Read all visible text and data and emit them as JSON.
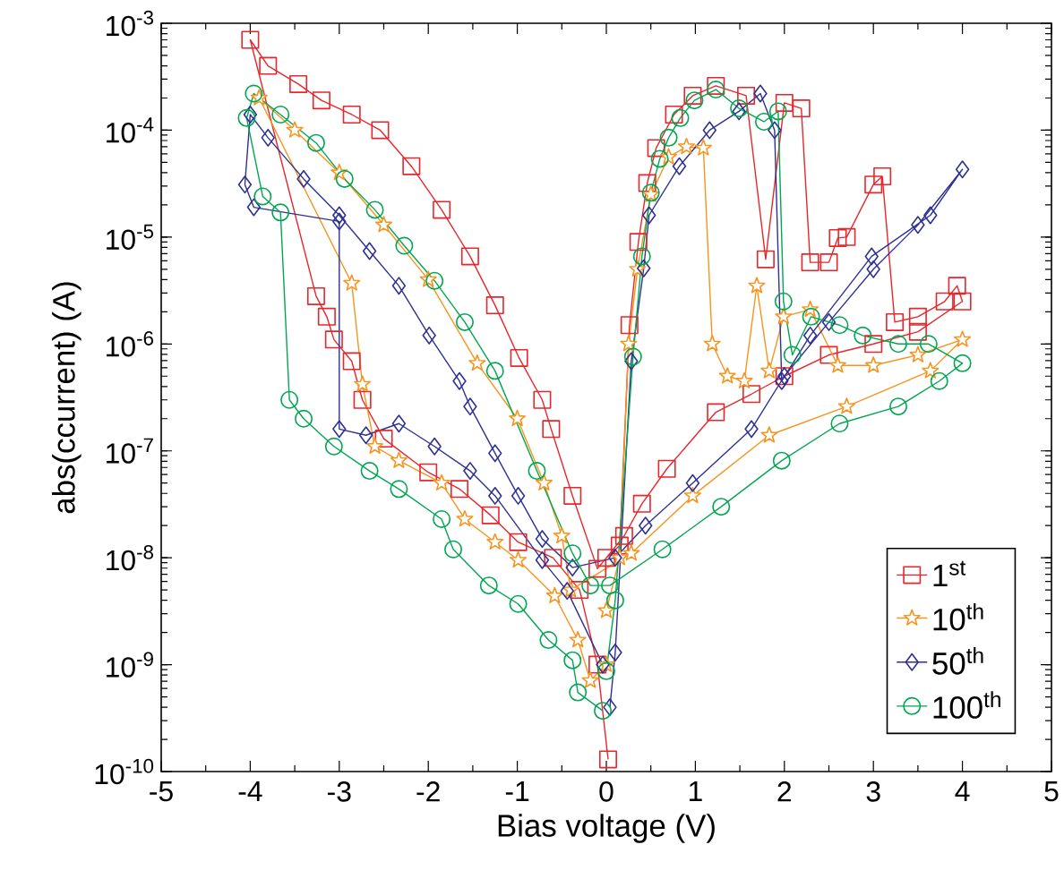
{
  "chart_data": {
    "type": "line",
    "xlabel": "Bias voltage (V)",
    "ylabel": "abs(ccurrent) (A)",
    "log": "y",
    "legend": "bottom right",
    "line_style": "solid",
    "xlim": [
      -5,
      5
    ],
    "xticks": [
      -5,
      -4,
      -3,
      -2,
      -1,
      0,
      1,
      2,
      3,
      4,
      5
    ],
    "ylim": [
      1e-10,
      0.001
    ],
    "yticks": [
      {
        "value": 1e-10,
        "label": "10$^{-10}$"
      },
      {
        "value": 1e-09,
        "label": "10$^{-9}$"
      },
      {
        "value": 1e-08,
        "label": "10$^{-8}$"
      },
      {
        "value": 1e-07,
        "label": "10$^{-7}$"
      },
      {
        "value": 1e-06,
        "label": "10$^{-6}$"
      },
      {
        "value": 1e-05,
        "label": "10$^{-5}$"
      },
      {
        "value": 0.0001,
        "label": "10$^{-4}$"
      },
      {
        "value": 0.001,
        "label": "10$^{-3}$"
      }
    ],
    "series": [
      {
        "name": "1$^{st}$",
        "color": "#e8262b",
        "marker": "square",
        "x": [
          0.0,
          0.15,
          0.26,
          0.36,
          0.46,
          0.56,
          0.76,
          0.97,
          1.23,
          1.57,
          1.79,
          2.0,
          2.19,
          2.29,
          2.5,
          2.6,
          2.7,
          3.0,
          3.1,
          3.24,
          3.5,
          3.8,
          3.94,
          4.0,
          3.5,
          3.0,
          2.5,
          2.0,
          1.63,
          1.23,
          0.68,
          0.4,
          0.2,
          -0.1,
          -0.38,
          -0.62,
          -0.72,
          -0.98,
          -1.25,
          -1.53,
          -1.85,
          -2.19,
          -2.54,
          -2.86,
          -3.2,
          -3.46,
          -3.8,
          -4.0,
          -3.26,
          -3.14,
          -3.06,
          -2.86,
          -2.74,
          -2.5,
          -2.0,
          -1.65,
          -1.3,
          -0.99,
          -0.6,
          -0.3,
          -0.1,
          0.02
        ],
        "values": [
          1e-08,
          1.3e-08,
          1.5e-06,
          9e-06,
          3.2e-05,
          6.8e-05,
          0.00014,
          0.00021,
          0.00026,
          0.00021,
          6.2e-06,
          0.00018,
          0.00016,
          5.8e-06,
          5.8e-06,
          9.8e-06,
          1e-05,
          3.1e-05,
          3.7e-05,
          1.6e-06,
          1.8e-06,
          2.5e-06,
          3.5e-06,
          2.5e-06,
          1.3e-06,
          1e-06,
          7.9e-07,
          5e-07,
          3.4e-07,
          2.3e-07,
          6.8e-08,
          3.2e-08,
          1.6e-08,
          7.9e-09,
          3.8e-08,
          1.6e-07,
          3e-07,
          7.4e-07,
          2.3e-06,
          6.6e-06,
          1.8e-05,
          4.6e-05,
          0.0001,
          0.00014,
          0.00019,
          0.00027,
          0.0004,
          0.0007,
          2.8e-06,
          1.8e-06,
          1.1e-06,
          6.9e-07,
          3e-07,
          1.3e-07,
          6.3e-08,
          4.4e-08,
          2.5e-08,
          1.4e-08,
          1e-08,
          5e-09,
          1e-09,
          1.3e-10
        ]
      },
      {
        "name": "10$^{th}$",
        "color": "#f7941d",
        "marker": "star",
        "x": [
          0.0,
          0.15,
          0.25,
          0.35,
          0.5,
          0.7,
          0.9,
          1.09,
          1.19,
          1.36,
          1.55,
          1.69,
          1.83,
          1.99,
          2.29,
          2.6,
          3.0,
          3.5,
          4.0,
          3.64,
          2.7,
          1.83,
          0.97,
          0.28,
          -0.4,
          -0.5,
          -0.7,
          -1.0,
          -1.45,
          -2.0,
          -2.5,
          -3.0,
          -3.5,
          -3.9,
          -2.86,
          -2.74,
          -2.6,
          -2.33,
          -1.85,
          -1.59,
          -1.25,
          -0.99,
          -0.58,
          -0.32,
          -0.18,
          0.0
        ],
        "values": [
          3.2e-09,
          1e-08,
          1e-06,
          5e-06,
          2.5e-05,
          5.6e-05,
          7e-05,
          6.8e-05,
          1e-06,
          5e-07,
          4.5e-07,
          3.5e-06,
          5.6e-07,
          1.8e-06,
          2.1e-06,
          6.3e-07,
          6.3e-07,
          7.9e-07,
          1.1e-06,
          5.6e-07,
          2.6e-07,
          1.4e-07,
          3.8e-08,
          1.1e-08,
          5e-09,
          1.6e-08,
          5e-08,
          2e-07,
          6.6e-07,
          4e-06,
          1.3e-05,
          4e-05,
          0.0001,
          0.0002,
          3.7e-06,
          4.2e-07,
          1.1e-07,
          8.1e-08,
          5e-08,
          2.3e-08,
          1.4e-08,
          9.5e-09,
          4.4e-09,
          1.7e-09,
          7.1e-10,
          1e-09
        ]
      },
      {
        "name": "50$^{th}$",
        "color": "#2e3192",
        "marker": "diamond",
        "x": [
          0.04,
          0.1,
          0.28,
          0.42,
          0.48,
          0.82,
          1.16,
          1.49,
          1.73,
          1.89,
          1.97,
          2.29,
          2.98,
          3.64,
          4.0,
          3.5,
          3.0,
          2.5,
          2.0,
          1.63,
          0.97,
          0.44,
          0.1,
          -0.38,
          -0.72,
          -0.99,
          -1.25,
          -1.53,
          -1.65,
          -1.99,
          -2.33,
          -2.66,
          -3.0,
          -3.4,
          -3.8,
          -4.0,
          -4.06,
          -3.96,
          -3.0,
          -3.0,
          -2.7,
          -2.33,
          -1.93,
          -1.53,
          -1.25,
          -0.72,
          -0.44,
          -0.04
        ],
        "values": [
          4e-10,
          1.3e-09,
          6.9e-07,
          5.1e-06,
          1.6e-05,
          4.6e-05,
          0.0001,
          0.00015,
          0.00022,
          0.0001,
          4.5e-07,
          1.2e-06,
          6.6e-06,
          1.6e-05,
          4.3e-05,
          1.3e-05,
          5e-06,
          1.6e-06,
          5e-07,
          1.6e-07,
          5e-08,
          2e-08,
          1e-08,
          8.1e-09,
          1.5e-08,
          3.8e-08,
          9.5e-08,
          2.6e-07,
          4.5e-07,
          1.2e-06,
          3.5e-06,
          7.4e-06,
          1.6e-05,
          3.5e-05,
          8.5e-05,
          0.00014,
          3.1e-05,
          1.9e-05,
          1.4e-05,
          1.6e-07,
          1.4e-07,
          1.8e-07,
          1.1e-07,
          6.5e-08,
          3.8e-08,
          9.5e-09,
          4.9e-09,
          1e-09
        ]
      },
      {
        "name": "100$^{th}$",
        "color": "#00a651",
        "marker": "circle",
        "x": [
          0.0,
          0.1,
          0.3,
          0.4,
          0.5,
          0.6,
          0.7,
          0.83,
          0.99,
          1.23,
          1.49,
          1.77,
          1.93,
          1.99,
          2.09,
          2.3,
          2.62,
          2.88,
          3.28,
          3.62,
          4.0,
          3.74,
          3.28,
          2.62,
          1.97,
          1.29,
          0.63,
          0.04,
          -0.18,
          -0.38,
          -0.78,
          -1.25,
          -1.59,
          -1.93,
          -2.27,
          -2.6,
          -2.94,
          -3.26,
          -3.66,
          -3.96,
          -4.04,
          -3.86,
          -3.66,
          -3.56,
          -3.4,
          -3.06,
          -2.66,
          -2.33,
          -1.85,
          -1.72,
          -1.32,
          -0.99,
          -0.65,
          -0.38,
          -0.32,
          -0.04
        ],
        "values": [
          8.7e-10,
          4e-09,
          7.6e-07,
          6.6e-06,
          2.6e-05,
          5.4e-05,
          8.5e-05,
          0.00013,
          0.00019,
          0.00024,
          0.00016,
          0.00012,
          0.00015,
          2.5e-06,
          7.9e-07,
          1.8e-06,
          1.5e-06,
          1.2e-06,
          1e-06,
          1e-06,
          6.6e-07,
          4.5e-07,
          2.6e-07,
          1.8e-07,
          8.1e-08,
          3e-08,
          1.2e-08,
          5.5e-09,
          5.5e-09,
          1.1e-08,
          6.5e-08,
          5.6e-07,
          1.6e-06,
          3.9e-06,
          8.3e-06,
          1.8e-05,
          3.5e-05,
          7.6e-05,
          0.00014,
          0.00022,
          0.00013,
          2.4e-05,
          1.7e-05,
          3e-07,
          2e-07,
          1.1e-07,
          6.5e-08,
          4.4e-08,
          2.3e-08,
          1.2e-08,
          5.5e-09,
          3.7e-09,
          1.7e-09,
          1.1e-09,
          5.5e-10,
          3.7e-10
        ]
      }
    ]
  }
}
